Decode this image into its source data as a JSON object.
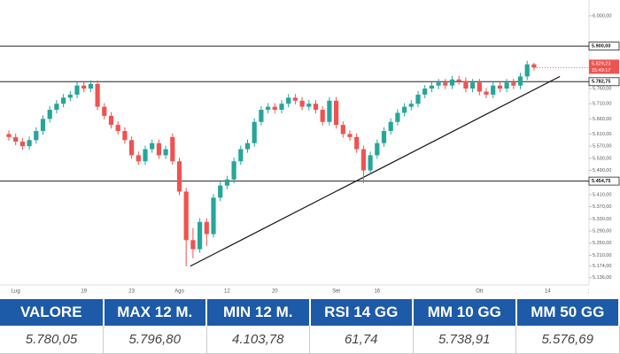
{
  "chart_data": {
    "type": "candlestick",
    "categories": [
      null,
      "Lug",
      null,
      null,
      null,
      null,
      null,
      null,
      null,
      null,
      null,
      "19",
      null,
      null,
      null,
      null,
      null,
      null,
      "23",
      null,
      null,
      null,
      null,
      null,
      null,
      "Ago",
      null,
      null,
      null,
      null,
      null,
      null,
      "12",
      null,
      null,
      null,
      null,
      null,
      null,
      "20",
      null,
      null,
      null,
      null,
      null,
      null,
      null,
      null,
      "Set",
      null,
      null,
      null,
      null,
      null,
      "16",
      null,
      null,
      null,
      null,
      null,
      null,
      null,
      null,
      null,
      null,
      null,
      null,
      null,
      null,
      "Ott",
      null,
      null,
      null,
      null,
      null,
      null,
      null,
      null,
      null,
      "14",
      null,
      null,
      null,
      null,
      null,
      ":"
    ],
    "open": [
      5610,
      5600,
      5585,
      5570,
      5590,
      5620,
      5660,
      5690,
      5710,
      5730,
      5740,
      5770,
      5760,
      5775,
      5700,
      5670,
      5640,
      5620,
      5590,
      5540,
      5520,
      5560,
      5580,
      5540,
      5600,
      5520,
      5420,
      5260,
      5230,
      5320,
      5280,
      5400,
      5440,
      5460,
      5520,
      5560,
      5580,
      5650,
      5690,
      5700,
      5690,
      5710,
      5730,
      5720,
      5700,
      5710,
      5690,
      5650,
      5720,
      5640,
      5610,
      5600,
      5560,
      5490,
      5540,
      5580,
      5620,
      5650,
      5680,
      5700,
      5710,
      5740,
      5760,
      5770,
      5780,
      5770,
      5790,
      5785,
      5760,
      5780,
      5750,
      5740,
      5770,
      5760,
      5780,
      5770,
      5800,
      5840,
      null,
      null,
      null,
      null,
      null,
      null,
      null,
      null
    ],
    "high": [
      5622,
      5612,
      5597,
      5602,
      5632,
      5672,
      5702,
      5722,
      5742,
      5752,
      5782,
      5782,
      5787,
      5787,
      5712,
      5682,
      5652,
      5632,
      5602,
      5552,
      5572,
      5592,
      5592,
      5572,
      5612,
      5532,
      5432,
      5300,
      5332,
      5332,
      5412,
      5452,
      5472,
      5532,
      5572,
      5592,
      5662,
      5702,
      5712,
      5712,
      5722,
      5742,
      5742,
      5732,
      5722,
      5722,
      5702,
      5732,
      5732,
      5652,
      5622,
      5612,
      5572,
      5552,
      5592,
      5632,
      5662,
      5692,
      5712,
      5722,
      5752,
      5772,
      5782,
      5792,
      5792,
      5802,
      5802,
      5797,
      5792,
      5792,
      5762,
      5782,
      5782,
      5792,
      5792,
      5812,
      5852,
      5845,
      null,
      null,
      null,
      null,
      null,
      null,
      null,
      null
    ],
    "low": [
      5588,
      5573,
      5558,
      5558,
      5578,
      5608,
      5648,
      5678,
      5698,
      5718,
      5728,
      5748,
      5748,
      5688,
      5658,
      5628,
      5608,
      5578,
      5528,
      5508,
      5508,
      5548,
      5528,
      5528,
      5508,
      5408,
      5174,
      5200,
      5218,
      5240,
      5268,
      5388,
      5428,
      5448,
      5508,
      5548,
      5568,
      5638,
      5678,
      5678,
      5678,
      5698,
      5708,
      5688,
      5688,
      5678,
      5638,
      5638,
      5628,
      5598,
      5588,
      5548,
      5448,
      5478,
      5528,
      5568,
      5608,
      5638,
      5668,
      5688,
      5698,
      5728,
      5748,
      5758,
      5758,
      5758,
      5773,
      5748,
      5748,
      5738,
      5728,
      5728,
      5748,
      5748,
      5758,
      5758,
      5788,
      5820,
      null,
      null,
      null,
      null,
      null,
      null,
      null,
      null
    ],
    "close": [
      5600,
      5585,
      5570,
      5590,
      5620,
      5660,
      5690,
      5710,
      5730,
      5740,
      5770,
      5760,
      5775,
      5700,
      5670,
      5640,
      5620,
      5590,
      5540,
      5520,
      5560,
      5580,
      5540,
      5560,
      5520,
      5420,
      5260,
      5230,
      5320,
      5280,
      5400,
      5440,
      5460,
      5520,
      5560,
      5580,
      5650,
      5690,
      5700,
      5690,
      5710,
      5730,
      5720,
      5700,
      5710,
      5690,
      5650,
      5720,
      5640,
      5610,
      5600,
      5560,
      5490,
      5540,
      5580,
      5620,
      5650,
      5680,
      5700,
      5710,
      5740,
      5760,
      5770,
      5780,
      5770,
      5790,
      5785,
      5760,
      5780,
      5750,
      5740,
      5770,
      5760,
      5780,
      5770,
      5800,
      5840,
      5829.23,
      null,
      null,
      null,
      null,
      null,
      null,
      null,
      null
    ],
    "up_color": "#26a69a",
    "down_color": "#ef5350",
    "ylim": [
      5112,
      6023
    ],
    "yticks": [
      {
        "value": 6000,
        "label": "6.000,00"
      },
      {
        "value": 5760,
        "label": "5.760,00"
      },
      {
        "value": 5710,
        "label": "5.710,00"
      },
      {
        "value": 5660,
        "label": "5.660,00"
      },
      {
        "value": 5610,
        "label": "5.610,00"
      },
      {
        "value": 5570,
        "label": "5.570,00"
      },
      {
        "value": 5530,
        "label": "5.530,00"
      },
      {
        "value": 5490,
        "label": "5.490,00"
      },
      {
        "value": 5410,
        "label": "5.410,00"
      },
      {
        "value": 5370,
        "label": "5.370,00"
      },
      {
        "value": 5330,
        "label": "5.330,00"
      },
      {
        "value": 5290,
        "label": "5.290,00"
      },
      {
        "value": 5250,
        "label": "5.250,00"
      },
      {
        "value": 5210,
        "label": "5.210,00"
      },
      {
        "value": 5174,
        "label": "5.174,00"
      },
      {
        "value": 5136,
        "label": "5.136,00"
      }
    ],
    "levels": [
      {
        "value": 5900,
        "label": "5.900,00"
      },
      {
        "value": 5782.75,
        "label": "5.782,75"
      },
      {
        "value": 5454.75,
        "label": "5.454,75"
      }
    ],
    "last": {
      "value": 5829.23,
      "label": "5.829,23",
      "countdown": "15:49:17"
    },
    "trendline": {
      "x": [
        26.6,
        80.8
      ],
      "y": [
        5174,
        5800
      ]
    },
    "grid": false
  },
  "table": {
    "header": [
      "VALORE",
      "MAX 12 M.",
      "MIN 12 M.",
      "RSI 14 GG",
      "MM 10 GG",
      "MM 50 GG"
    ],
    "rows": [
      [
        "5.780,05",
        "5.796,80",
        "4.103,78",
        "61,74",
        "5.738,91",
        "5.576,69"
      ]
    ]
  }
}
